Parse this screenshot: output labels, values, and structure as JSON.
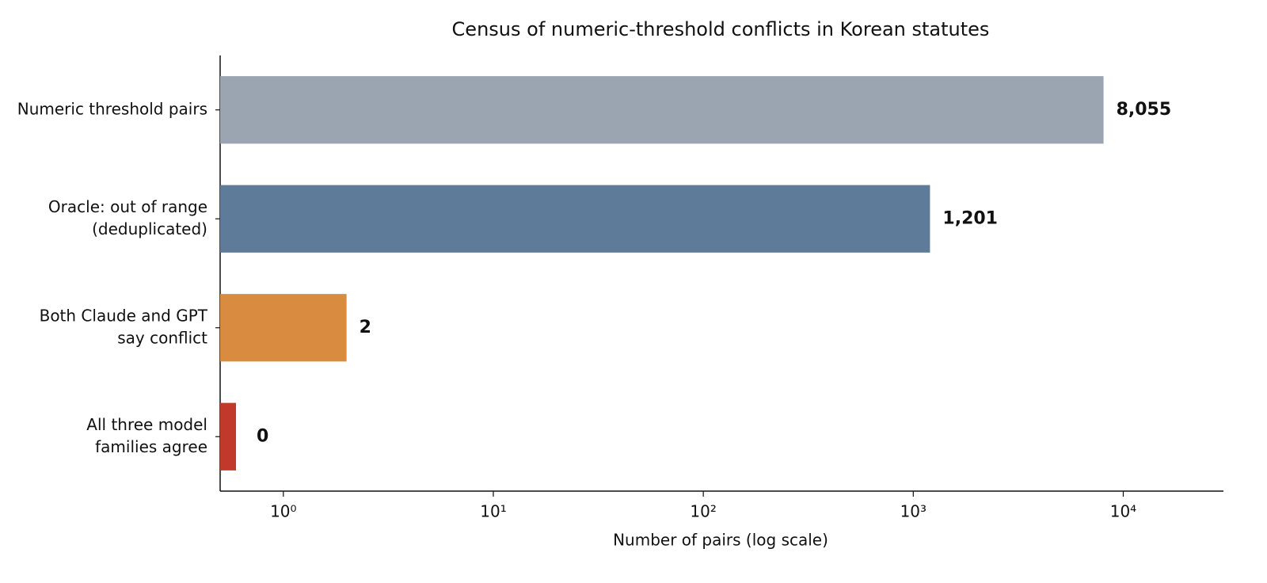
{
  "chart_data": {
    "type": "barh",
    "title": "Census of numeric-threshold conflicts in Korean statutes",
    "xlabel": "Number of pairs (log scale)",
    "categories": [
      [
        "Numeric threshold pairs"
      ],
      [
        "Oracle: out of range",
        "(deduplicated)"
      ],
      [
        "Both Claude and GPT",
        "say conflict"
      ],
      [
        "All three model",
        "families agree"
      ]
    ],
    "values": [
      8055,
      1201,
      2,
      0
    ],
    "value_labels": [
      "8,055",
      "1,201",
      "2",
      "0"
    ],
    "colors": [
      "#9aa5b1",
      "#5e7b99",
      "#d98c40",
      "#c0392b"
    ],
    "xscale": "log",
    "xlim": [
      0.5,
      30000
    ],
    "xticks": [
      {
        "value": 1,
        "label": "10⁰"
      },
      {
        "value": 10,
        "label": "10¹"
      },
      {
        "value": 100,
        "label": "10²"
      },
      {
        "value": 1000,
        "label": "10³"
      },
      {
        "value": 10000,
        "label": "10⁴"
      }
    ]
  }
}
